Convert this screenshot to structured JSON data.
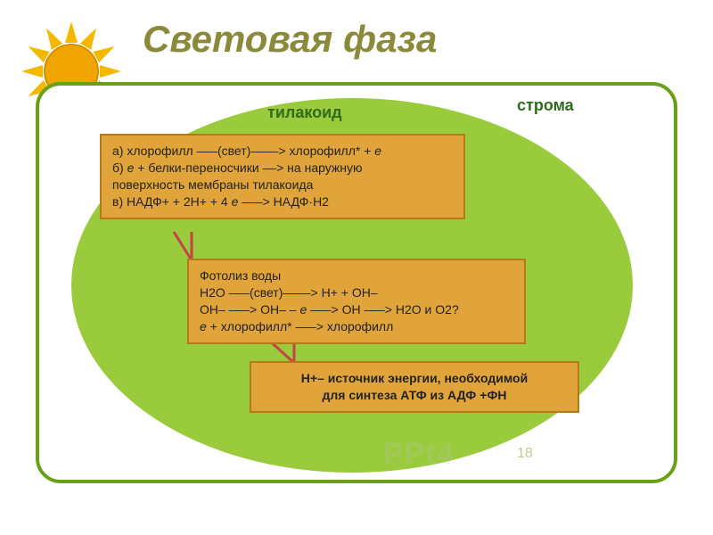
{
  "title": {
    "text": "Световая фаза",
    "color": "#8a8a3a"
  },
  "sun": {
    "core_fill": "#f0a500",
    "core_radial": "#d88e00",
    "ray_fill": "#f5b800",
    "ray_count": 12,
    "ray_length": 26,
    "ray_width": 14
  },
  "frame": {
    "border_color": "#6aa017"
  },
  "stroma": {
    "fill": "#9acb3c",
    "label_top": "тилакоид",
    "label_right": "строма",
    "label_color": "#2f6b18"
  },
  "boxes": {
    "fill": "#e0a43a",
    "border": "#b47a18",
    "text_color": "#222222",
    "box1_lines": [
      "а) хлорофилл –––(свет)––––> хлорофилл* + e",
      "б) e + белки-переносчики ––> на наружную",
      "поверхность мембраны тилакоида",
      "в) НАДФ+ + 2H+ + 4 e –––> НАДФ·H2"
    ],
    "box2_lines": [
      " Фотолиз воды",
      "H2O –––(свет)––––> H+ + OH–",
      "OH– –––> OH– – e –––> OH –––> H2O и O2?",
      "e + хлорофилл* –––> хлорофилл"
    ],
    "box3_lines": [
      "H+– источник энергии, необходимой",
      "для синтеза АТФ из АДФ +ФН"
    ]
  },
  "connectors": {
    "color": "#c44545",
    "width": 3
  },
  "page_number": {
    "text": "18",
    "color": "#c9c98a"
  },
  "watermark": {
    "text": "PPt4",
    "color": "#bfbfbf"
  }
}
